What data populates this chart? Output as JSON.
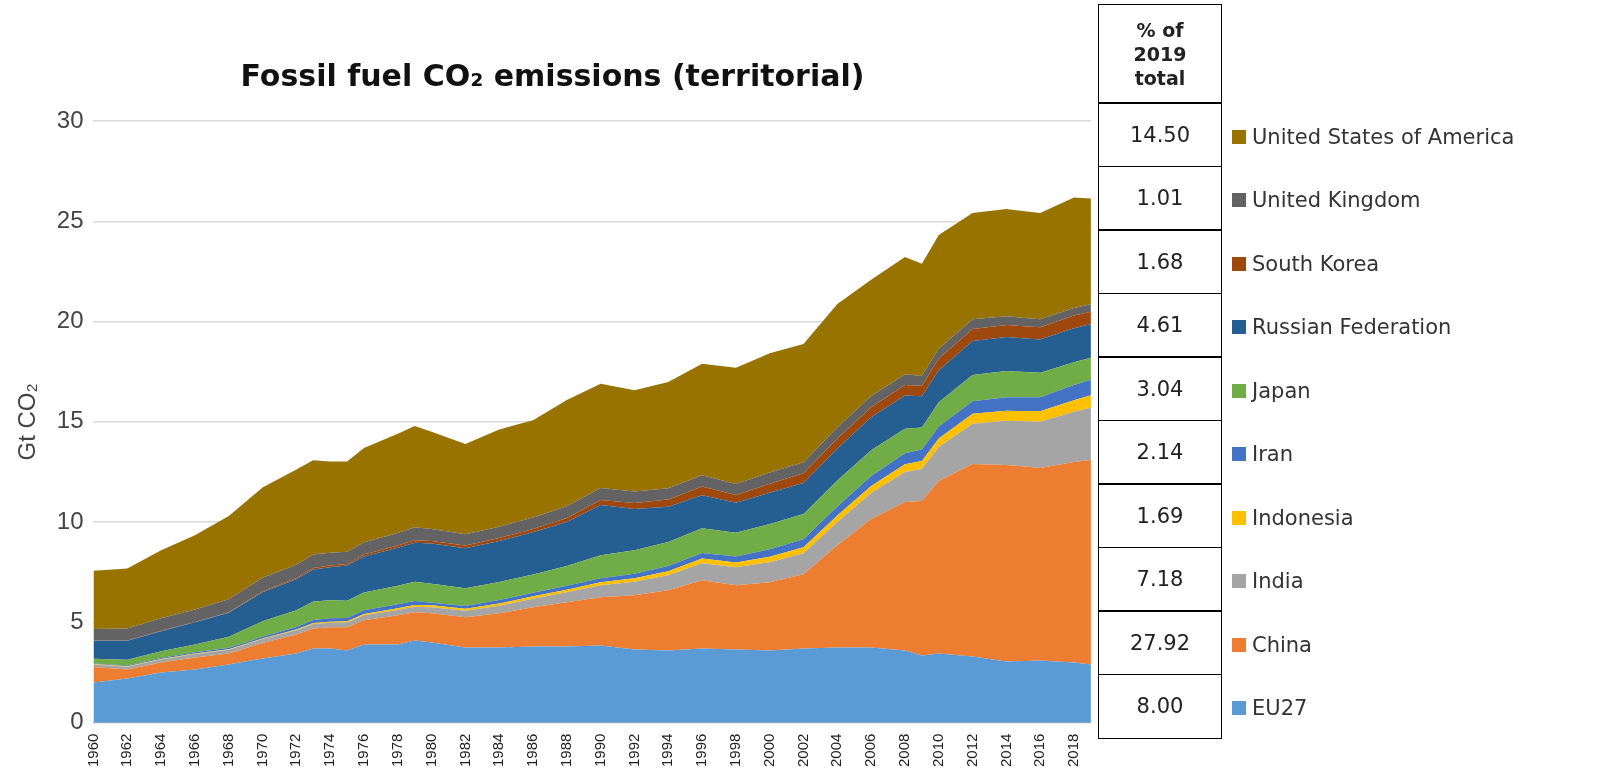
{
  "chart_data": {
    "type": "area",
    "title": "Fossil fuel CO₂ emissions (territorial)",
    "ylabel": "Gt CO₂",
    "stacked": true,
    "grid": "y",
    "legend": "right",
    "marker": "none",
    "x": [
      1960,
      1962,
      1964,
      1966,
      1968,
      1970,
      1972,
      1973,
      1974,
      1975,
      1976,
      1978,
      1979,
      1980,
      1982,
      1984,
      1986,
      1988,
      1990,
      1992,
      1994,
      1996,
      1998,
      2000,
      2002,
      2004,
      2006,
      2008,
      2009,
      2010,
      2012,
      2014,
      2016,
      2018,
      2019
    ],
    "xlim": [
      1960,
      2019
    ],
    "xticks": [
      1960,
      1962,
      1964,
      1966,
      1968,
      1970,
      1972,
      1974,
      1976,
      1978,
      1980,
      1982,
      1984,
      1986,
      1988,
      1990,
      1992,
      1994,
      1996,
      1998,
      2000,
      2002,
      2004,
      2006,
      2008,
      2010,
      2012,
      2014,
      2016,
      2018
    ],
    "ylim": [
      0,
      30
    ],
    "yticks": [
      0,
      5,
      10,
      15,
      20,
      25,
      30
    ],
    "series": [
      {
        "name": "EU27",
        "color": "#5b9bd5",
        "values": [
          2.0,
          2.2,
          2.5,
          2.65,
          2.9,
          3.2,
          3.45,
          3.7,
          3.7,
          3.6,
          3.9,
          3.9,
          4.1,
          4.0,
          3.75,
          3.75,
          3.8,
          3.8,
          3.85,
          3.65,
          3.6,
          3.7,
          3.65,
          3.6,
          3.7,
          3.75,
          3.75,
          3.6,
          3.35,
          3.45,
          3.3,
          3.05,
          3.1,
          3.0,
          2.9
        ]
      },
      {
        "name": "China",
        "color": "#ed7d31",
        "values": [
          0.78,
          0.45,
          0.5,
          0.6,
          0.55,
          0.77,
          0.95,
          1.0,
          1.05,
          1.15,
          1.2,
          1.45,
          1.4,
          1.45,
          1.5,
          1.7,
          1.95,
          2.2,
          2.4,
          2.7,
          3.0,
          3.4,
          3.2,
          3.4,
          3.7,
          5.1,
          6.4,
          7.4,
          7.7,
          8.6,
          9.6,
          9.8,
          9.6,
          10.0,
          10.2
        ]
      },
      {
        "name": "India",
        "color": "#a5a5a5",
        "values": [
          0.12,
          0.14,
          0.15,
          0.17,
          0.18,
          0.2,
          0.21,
          0.22,
          0.23,
          0.24,
          0.26,
          0.27,
          0.28,
          0.3,
          0.33,
          0.38,
          0.43,
          0.5,
          0.6,
          0.67,
          0.75,
          0.85,
          0.9,
          1.0,
          1.05,
          1.15,
          1.3,
          1.5,
          1.6,
          1.7,
          2.0,
          2.2,
          2.3,
          2.5,
          2.6
        ]
      },
      {
        "name": "Indonesia",
        "color": "#ffc000",
        "values": [
          0.02,
          0.02,
          0.02,
          0.03,
          0.03,
          0.03,
          0.04,
          0.05,
          0.05,
          0.06,
          0.06,
          0.08,
          0.09,
          0.1,
          0.1,
          0.11,
          0.12,
          0.13,
          0.15,
          0.18,
          0.2,
          0.23,
          0.24,
          0.27,
          0.3,
          0.33,
          0.35,
          0.38,
          0.4,
          0.42,
          0.5,
          0.5,
          0.53,
          0.58,
          0.62
        ]
      },
      {
        "name": "Iran",
        "color": "#4472c4",
        "values": [
          0.03,
          0.04,
          0.05,
          0.06,
          0.07,
          0.08,
          0.12,
          0.15,
          0.17,
          0.17,
          0.18,
          0.2,
          0.2,
          0.13,
          0.14,
          0.17,
          0.18,
          0.19,
          0.2,
          0.23,
          0.26,
          0.28,
          0.3,
          0.37,
          0.4,
          0.45,
          0.5,
          0.55,
          0.57,
          0.6,
          0.63,
          0.68,
          0.7,
          0.75,
          0.78
        ]
      },
      {
        "name": "Japan",
        "color": "#70ad47",
        "values": [
          0.23,
          0.28,
          0.34,
          0.39,
          0.55,
          0.77,
          0.83,
          0.92,
          0.9,
          0.86,
          0.89,
          0.92,
          0.95,
          0.95,
          0.88,
          0.9,
          0.91,
          0.99,
          1.15,
          1.17,
          1.2,
          1.23,
          1.18,
          1.27,
          1.25,
          1.29,
          1.28,
          1.23,
          1.1,
          1.2,
          1.3,
          1.3,
          1.22,
          1.14,
          1.1
        ]
      },
      {
        "name": "Russian Federation",
        "color": "#255e91",
        "values": [
          0.9,
          0.95,
          1.0,
          1.1,
          1.2,
          1.45,
          1.55,
          1.6,
          1.65,
          1.75,
          1.8,
          1.9,
          1.95,
          2.0,
          2.0,
          2.05,
          2.1,
          2.2,
          2.5,
          2.05,
          1.75,
          1.65,
          1.5,
          1.55,
          1.55,
          1.6,
          1.65,
          1.65,
          1.55,
          1.6,
          1.7,
          1.7,
          1.65,
          1.7,
          1.68
        ]
      },
      {
        "name": "South Korea",
        "color": "#9e480e",
        "values": [
          0.01,
          0.01,
          0.02,
          0.02,
          0.03,
          0.05,
          0.06,
          0.07,
          0.08,
          0.08,
          0.09,
          0.11,
          0.12,
          0.13,
          0.13,
          0.15,
          0.16,
          0.2,
          0.25,
          0.3,
          0.37,
          0.43,
          0.38,
          0.45,
          0.48,
          0.5,
          0.5,
          0.52,
          0.53,
          0.59,
          0.6,
          0.6,
          0.61,
          0.63,
          0.61
        ]
      },
      {
        "name": "United Kingdom",
        "color": "#636363",
        "values": [
          0.58,
          0.6,
          0.62,
          0.62,
          0.64,
          0.67,
          0.66,
          0.67,
          0.64,
          0.61,
          0.61,
          0.63,
          0.65,
          0.6,
          0.56,
          0.56,
          0.58,
          0.58,
          0.6,
          0.58,
          0.56,
          0.57,
          0.55,
          0.56,
          0.55,
          0.56,
          0.56,
          0.54,
          0.48,
          0.5,
          0.48,
          0.43,
          0.4,
          0.38,
          0.37
        ]
      },
      {
        "name": "United States of America",
        "color": "#997300",
        "values": [
          2.9,
          3.0,
          3.4,
          3.7,
          4.15,
          4.5,
          4.75,
          4.7,
          4.55,
          4.5,
          4.7,
          4.95,
          5.05,
          4.85,
          4.5,
          4.85,
          4.85,
          5.3,
          5.2,
          5.05,
          5.3,
          5.55,
          5.8,
          5.95,
          5.9,
          6.15,
          5.8,
          5.85,
          5.6,
          5.65,
          5.3,
          5.35,
          5.3,
          5.5,
          5.28
        ]
      }
    ],
    "annotations": [
      "% of 2019 total",
      "14.50",
      "1.01",
      "1.68",
      "4.61",
      "3.04",
      "2.14",
      "1.69",
      "7.18",
      "27.92",
      "8.00"
    ]
  }
}
